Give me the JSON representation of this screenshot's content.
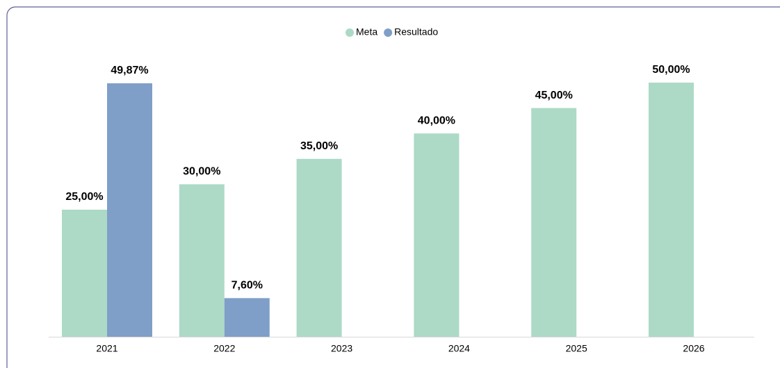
{
  "chart_data": {
    "type": "bar",
    "categories": [
      "2021",
      "2022",
      "2023",
      "2024",
      "2025",
      "2026"
    ],
    "series": [
      {
        "name": "Meta",
        "color": "#acdac6",
        "values": [
          25,
          30,
          35,
          40,
          45,
          50
        ],
        "value_labels": [
          "25,00%",
          "30,00%",
          "35,00%",
          "40,00%",
          "45,00%",
          "50,00%"
        ]
      },
      {
        "name": "Resultado",
        "color": "#7f9fc8",
        "values": [
          49.87,
          7.6,
          null,
          null,
          null,
          null
        ],
        "value_labels": [
          "49,87%",
          "7,60%",
          null,
          null,
          null,
          null
        ]
      }
    ],
    "legend": "top"
  }
}
